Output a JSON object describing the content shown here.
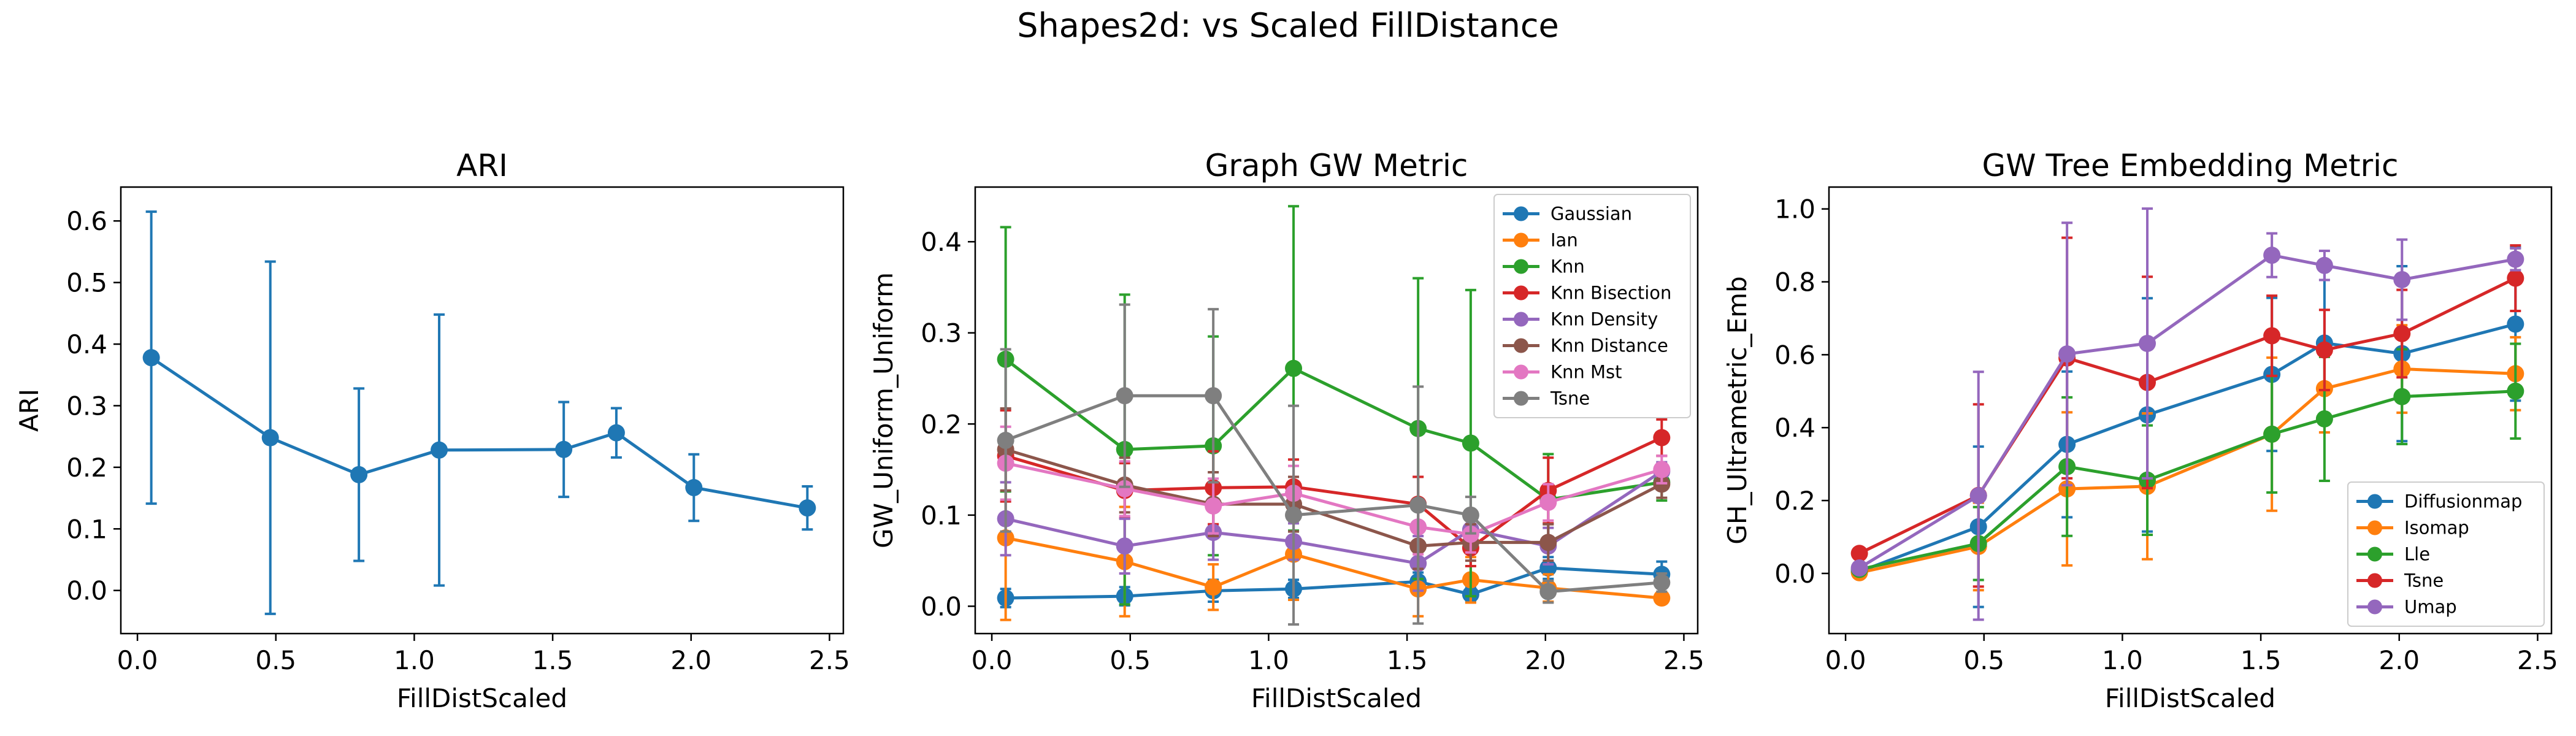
{
  "suptitle": "Shapes2d: vs Scaled FillDistance",
  "colors": {
    "tab_blue": "#1f77b4",
    "tab_orange": "#ff7f0e",
    "tab_green": "#2ca02c",
    "tab_red": "#d62728",
    "tab_purple": "#9467bd",
    "tab_brown": "#8c564b",
    "tab_pink": "#e377c2",
    "tab_gray": "#7f7f7f"
  },
  "chart_data": [
    {
      "type": "line",
      "title": "ARI",
      "xlabel": "FillDistScaled",
      "ylabel": "ARI",
      "xlim": [
        -0.06,
        2.55
      ],
      "ylim": [
        -0.07,
        0.655
      ],
      "xticks": [
        0.0,
        0.5,
        1.0,
        1.5,
        2.0,
        2.5
      ],
      "xtick_labels": [
        "0.0",
        "0.5",
        "1.0",
        "1.5",
        "2.0",
        "2.5"
      ],
      "yticks": [
        0.0,
        0.1,
        0.2,
        0.3,
        0.4,
        0.5,
        0.6
      ],
      "ytick_labels": [
        "0.0",
        "0.1",
        "0.2",
        "0.3",
        "0.4",
        "0.5",
        "0.6"
      ],
      "grid": false,
      "legend": null,
      "x": [
        0.05,
        0.48,
        0.8,
        1.09,
        1.54,
        1.73,
        2.01,
        2.42
      ],
      "series": [
        {
          "color": "#1f77b4",
          "values": [
            0.378,
            0.248,
            0.188,
            0.228,
            0.229,
            0.256,
            0.167,
            0.134
          ],
          "err": [
            0.237,
            0.286,
            0.14,
            0.22,
            0.077,
            0.04,
            0.054,
            0.035
          ]
        }
      ]
    },
    {
      "type": "line",
      "title": "Graph GW Metric",
      "xlabel": "FillDistScaled",
      "ylabel": "GW_Uniform_Uniform",
      "xlim": [
        -0.06,
        2.55
      ],
      "ylim": [
        -0.03,
        0.46
      ],
      "xticks": [
        0.0,
        0.5,
        1.0,
        1.5,
        2.0,
        2.5
      ],
      "xtick_labels": [
        "0.0",
        "0.5",
        "1.0",
        "1.5",
        "2.0",
        "2.5"
      ],
      "yticks": [
        0.0,
        0.1,
        0.2,
        0.3,
        0.4
      ],
      "ytick_labels": [
        "0.0",
        "0.1",
        "0.2",
        "0.3",
        "0.4"
      ],
      "grid": false,
      "legend": "top-right",
      "x": [
        0.05,
        0.48,
        0.8,
        1.09,
        1.54,
        1.73,
        2.01,
        2.42
      ],
      "series": [
        {
          "name": "Gaussian",
          "color": "#1f77b4",
          "values": [
            0.009,
            0.011,
            0.017,
            0.019,
            0.027,
            0.013,
            0.042,
            0.035
          ],
          "err": [
            0.01,
            0.01,
            0.012,
            0.01,
            0.01,
            0.008,
            0.012,
            0.014
          ]
        },
        {
          "name": "Ian",
          "color": "#ff7f0e",
          "values": [
            0.075,
            0.049,
            0.021,
            0.057,
            0.019,
            0.029,
            0.02,
            0.009
          ],
          "err": [
            0.09,
            0.06,
            0.025,
            0.05,
            0.03,
            0.025,
            0.015,
            0.005
          ]
        },
        {
          "name": "Knn",
          "color": "#2ca02c",
          "values": [
            0.271,
            0.172,
            0.176,
            0.261,
            0.195,
            0.179,
            0.117,
            0.136
          ],
          "err": [
            0.145,
            0.17,
            0.12,
            0.178,
            0.165,
            0.168,
            0.05,
            0.02
          ]
        },
        {
          "name": "Knn Bisection",
          "color": "#d62728",
          "values": [
            0.165,
            0.127,
            0.13,
            0.131,
            0.112,
            0.064,
            0.127,
            0.185
          ],
          "err": [
            0.05,
            0.03,
            0.04,
            0.03,
            0.03,
            0.02,
            0.036,
            0.02
          ]
        },
        {
          "name": "Knn Density",
          "color": "#9467bd",
          "values": [
            0.096,
            0.066,
            0.081,
            0.071,
            0.047,
            0.084,
            0.066,
            0.148
          ],
          "err": [
            0.04,
            0.03,
            0.03,
            0.02,
            0.03,
            0.02,
            0.02,
            0.01
          ]
        },
        {
          "name": "Knn Distance",
          "color": "#8c564b",
          "values": [
            0.172,
            0.133,
            0.112,
            0.112,
            0.066,
            0.07,
            0.07,
            0.134
          ],
          "err": [
            0.045,
            0.03,
            0.035,
            0.03,
            0.025,
            0.02,
            0.02,
            0.015
          ]
        },
        {
          "name": "Knn Mst",
          "color": "#e377c2",
          "values": [
            0.157,
            0.129,
            0.11,
            0.124,
            0.087,
            0.079,
            0.114,
            0.15
          ],
          "err": [
            0.04,
            0.03,
            0.03,
            0.03,
            0.03,
            0.02,
            0.02,
            0.015
          ]
        },
        {
          "name": "Tsne",
          "color": "#7f7f7f",
          "values": [
            0.182,
            0.231,
            0.231,
            0.1,
            0.111,
            0.1,
            0.016,
            0.026
          ],
          "err": [
            0.1,
            0.1,
            0.095,
            0.12,
            0.13,
            0.02,
            0.012,
            0.01
          ]
        }
      ]
    },
    {
      "type": "line",
      "title": "GW Tree Embedding Metric",
      "xlabel": "FillDistScaled",
      "ylabel": "GH_Ultrametric_Emb",
      "xlim": [
        -0.06,
        2.55
      ],
      "ylim": [
        -0.165,
        1.06
      ],
      "xticks": [
        0.0,
        0.5,
        1.0,
        1.5,
        2.0,
        2.5
      ],
      "xtick_labels": [
        "0.0",
        "0.5",
        "1.0",
        "1.5",
        "2.0",
        "2.5"
      ],
      "yticks": [
        0.0,
        0.2,
        0.4,
        0.6,
        0.8,
        1.0
      ],
      "ytick_labels": [
        "0.0",
        "0.2",
        "0.4",
        "0.6",
        "0.8",
        "1.0"
      ],
      "grid": false,
      "legend": "bottom-right",
      "x": [
        0.05,
        0.48,
        0.8,
        1.09,
        1.54,
        1.73,
        2.01,
        2.42
      ],
      "series": [
        {
          "name": "Diffusionmap",
          "color": "#1f77b4",
          "values": [
            0.005,
            0.128,
            0.354,
            0.435,
            0.546,
            0.632,
            0.603,
            0.684
          ],
          "err": [
            0.01,
            0.22,
            0.2,
            0.32,
            0.21,
            0.2,
            0.24,
            0.21
          ]
        },
        {
          "name": "Isomap",
          "color": "#ff7f0e",
          "values": [
            0.002,
            0.074,
            0.232,
            0.239,
            0.382,
            0.507,
            0.561,
            0.548
          ],
          "err": [
            0.01,
            0.12,
            0.21,
            0.2,
            0.21,
            0.12,
            0.12,
            0.1
          ]
        },
        {
          "name": "Lle",
          "color": "#2ca02c",
          "values": [
            0.011,
            0.082,
            0.293,
            0.256,
            0.382,
            0.424,
            0.485,
            0.5
          ],
          "err": [
            0.01,
            0.1,
            0.19,
            0.15,
            0.16,
            0.17,
            0.13,
            0.13
          ]
        },
        {
          "name": "Tsne",
          "color": "#d62728",
          "values": [
            0.055,
            0.214,
            0.591,
            0.524,
            0.652,
            0.613,
            0.658,
            0.81
          ],
          "err": [
            0.01,
            0.25,
            0.33,
            0.29,
            0.11,
            0.11,
            0.12,
            0.09
          ]
        },
        {
          "name": "Umap",
          "color": "#9467bd",
          "values": [
            0.015,
            0.213,
            0.602,
            0.631,
            0.873,
            0.845,
            0.806,
            0.862
          ],
          "err": [
            0.01,
            0.34,
            0.36,
            0.37,
            0.06,
            0.04,
            0.11,
            0.03
          ]
        }
      ]
    }
  ]
}
